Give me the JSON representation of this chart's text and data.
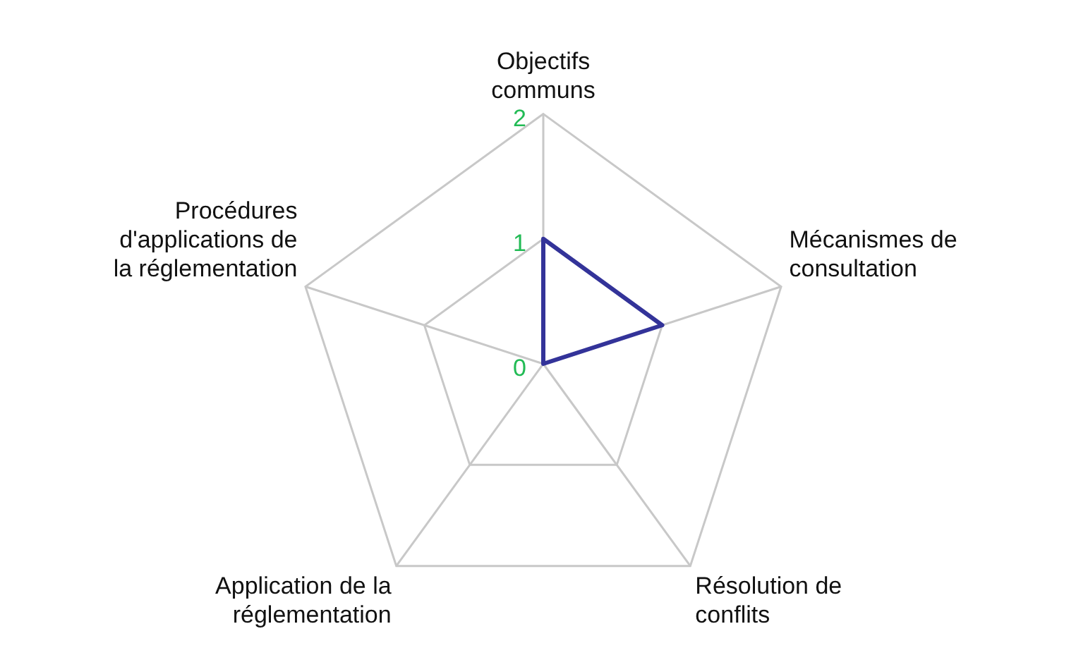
{
  "chart_data": {
    "type": "radar",
    "categories": [
      "Objectifs\ncommuns",
      "Mécanismes de\nconsultation",
      "Résolution de\nconflits",
      "Application de la\nréglementation",
      "Procédures\nd'applications de\nla réglementation"
    ],
    "series": [
      {
        "color": "#333399",
        "values": [
          1,
          1,
          0,
          0,
          0
        ]
      }
    ],
    "ylim": [
      0,
      2
    ],
    "yticks": [
      0,
      1,
      2
    ],
    "grid": true,
    "legend": false,
    "marker": "none",
    "line_style": "solid"
  }
}
